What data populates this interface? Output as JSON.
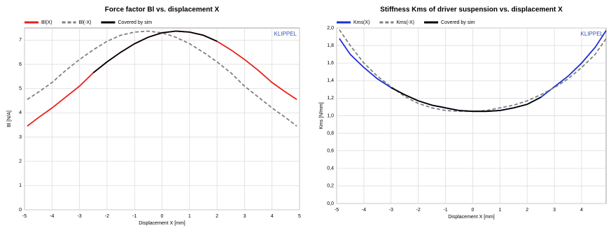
{
  "chart_data": [
    {
      "type": "line",
      "title": "Force factor Bl vs. displacement X",
      "xlabel": "Displacement X  [mm]",
      "ylabel": "Bl [N/A]",
      "annotation": "KLIPPEL",
      "x": [
        -4.9,
        -4.5,
        -4,
        -3.5,
        -3,
        -2.5,
        -2,
        -1.5,
        -1,
        -0.5,
        0,
        0.5,
        1,
        1.5,
        2,
        2.5,
        3,
        3.5,
        4,
        4.5,
        4.9
      ],
      "series": [
        {
          "name": "Bl(X)",
          "color": "#e8201c",
          "dashed": false,
          "values": [
            3.45,
            3.8,
            4.2,
            4.65,
            5.1,
            5.65,
            6.1,
            6.5,
            6.85,
            7.12,
            7.3,
            7.37,
            7.33,
            7.2,
            6.95,
            6.6,
            6.2,
            5.75,
            5.25,
            4.85,
            4.55
          ]
        },
        {
          "name": "Bl(-X)",
          "color": "#808080",
          "dashed": true,
          "values": [
            4.55,
            4.85,
            5.25,
            5.75,
            6.2,
            6.6,
            6.95,
            7.2,
            7.33,
            7.37,
            7.3,
            7.12,
            6.85,
            6.5,
            6.1,
            5.65,
            5.1,
            4.65,
            4.2,
            3.8,
            3.45
          ]
        },
        {
          "name": "Covered by sim",
          "color": "#000000",
          "dashed": false,
          "values": [
            null,
            null,
            null,
            null,
            null,
            5.65,
            6.1,
            6.5,
            6.85,
            7.12,
            7.3,
            7.37,
            7.33,
            7.2,
            6.95,
            null,
            null,
            null,
            null,
            null,
            null
          ]
        }
      ],
      "xlim": [
        -5,
        5
      ],
      "ylim": [
        0,
        7.5
      ],
      "xticks": [
        -5,
        -4,
        -3,
        -2,
        -1,
        0,
        1,
        2,
        3,
        4,
        5
      ],
      "yticks": [
        0,
        1,
        2,
        3,
        4,
        5,
        6,
        7
      ],
      "grid": true
    },
    {
      "type": "line",
      "title": "Stiffness Kms of driver suspension vs. displacement X",
      "xlabel": "Displacement X  [mm]",
      "ylabel": "Kms [N/mm]",
      "annotation": "KLIPPEL",
      "x": [
        -4.9,
        -4.5,
        -4,
        -3.5,
        -3,
        -2.5,
        -2,
        -1.5,
        -1,
        -0.5,
        0,
        0.5,
        1,
        1.5,
        2,
        2.5,
        3,
        3.5,
        4,
        4.5,
        4.9
      ],
      "series": [
        {
          "name": "Kms(X)",
          "color": "#1c2fd0",
          "dashed": false,
          "values": [
            1.88,
            1.7,
            1.55,
            1.42,
            1.32,
            1.24,
            1.17,
            1.12,
            1.09,
            1.06,
            1.05,
            1.05,
            1.06,
            1.09,
            1.13,
            1.21,
            1.33,
            1.45,
            1.6,
            1.78,
            1.97
          ]
        },
        {
          "name": "Kms(-X)",
          "color": "#808080",
          "dashed": true,
          "values": [
            1.98,
            1.8,
            1.6,
            1.45,
            1.33,
            1.22,
            1.14,
            1.09,
            1.06,
            1.05,
            1.05,
            1.06,
            1.09,
            1.12,
            1.17,
            1.24,
            1.32,
            1.42,
            1.55,
            1.7,
            1.88
          ]
        },
        {
          "name": "Covered by sim",
          "color": "#000000",
          "dashed": false,
          "values": [
            null,
            null,
            null,
            null,
            1.32,
            1.24,
            1.17,
            1.12,
            1.09,
            1.06,
            1.05,
            1.05,
            1.06,
            1.09,
            1.13,
            1.21,
            null,
            null,
            null,
            null,
            null
          ]
        }
      ],
      "xlim": [
        -5,
        4.9
      ],
      "ylim": [
        0,
        2.0
      ],
      "xticks": [
        -5,
        -4,
        -3,
        -2,
        -1,
        0,
        1,
        2,
        3,
        4
      ],
      "yticks": [
        {
          "value": 0,
          "label": "0,0"
        },
        {
          "value": 0.2,
          "label": "0,2"
        },
        {
          "value": 0.4,
          "label": "0,4"
        },
        {
          "value": 0.6,
          "label": "0,6"
        },
        {
          "value": 0.8,
          "label": "0,8"
        },
        {
          "value": 1.0,
          "label": "1,0"
        },
        {
          "value": 1.2,
          "label": "1,2"
        },
        {
          "value": 1.4,
          "label": "1,4"
        },
        {
          "value": 1.6,
          "label": "1,6"
        },
        {
          "value": 1.8,
          "label": "1,8"
        },
        {
          "value": 2.0,
          "label": "2,0"
        }
      ],
      "grid": true
    }
  ]
}
